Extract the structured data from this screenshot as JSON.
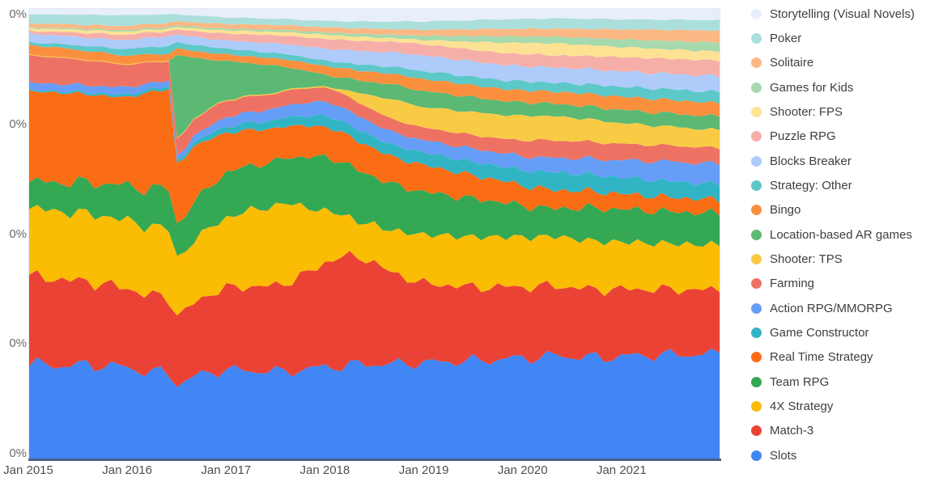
{
  "chart_data": {
    "type": "area",
    "subtype": "stacked-100-percent",
    "title": "",
    "xlabel": "",
    "ylabel": "",
    "y_axis_tick_labels": [
      "0%",
      "0%",
      "0%",
      "0%",
      "0%"
    ],
    "x_axis_tick_labels": [
      "Jan 2015",
      "Jan 2016",
      "Jan 2017",
      "Jan 2018",
      "Jan 2019",
      "Jan 2020",
      "Jan 2021"
    ],
    "x_tick_month_index": [
      0,
      12,
      24,
      36,
      48,
      60,
      72
    ],
    "months_total": 85,
    "x_start": "Jan 2015",
    "x_end": "Jan 2022",
    "grid": false,
    "legend_position": "right",
    "note_values": "percent share of total; series listed bottom-of-stack first; keyframes are month-index:share pairs, linearly interpolated, normalized to 100%",
    "series": [
      {
        "name": "Slots",
        "color": "#4285f4",
        "keyframes": {
          "0": 21,
          "9": 22.5,
          "12": 21.5,
          "17": 20.8,
          "18": 18,
          "21": 19.5,
          "24": 20,
          "36": 20.6,
          "42": 21.5,
          "48": 21.5,
          "60": 22.5,
          "64": 23,
          "70": 22.3,
          "76": 23,
          "84": 23.3
        }
      },
      {
        "name": "Match-3",
        "color": "#ea4335",
        "keyframes": {
          "0": 19.7,
          "6": 20,
          "12": 18.8,
          "17": 18.5,
          "18": 16.5,
          "24": 18.5,
          "30": 20,
          "36": 23.3,
          "38": 24.8,
          "41": 23.8,
          "45": 20,
          "48": 17.8,
          "54": 16.5,
          "64": 15.6,
          "72": 14.8,
          "84": 14.2
        }
      },
      {
        "name": "4X Strategy",
        "color": "#fbbc04",
        "keyframes": {
          "0": 15.2,
          "8": 16.3,
          "12": 16.2,
          "17": 17,
          "18": 14,
          "24": 15.8,
          "28": 18,
          "31": 18.8,
          "34": 15,
          "36": 11.5,
          "40": 7.8,
          "44": 9.5,
          "48": 11,
          "56": 11.3,
          "64": 11.1,
          "74": 10.3,
          "84": 10
        }
      },
      {
        "name": "Team RPG",
        "color": "#34a853",
        "keyframes": {
          "0": 5.9,
          "6": 7.2,
          "12": 8.3,
          "17": 9.8,
          "18": 8.2,
          "24": 10.2,
          "30": 10.3,
          "36": 12.2,
          "40": 11.5,
          "48": 9.6,
          "56": 8.2,
          "60": 7,
          "64": 6.2,
          "68": 7.3,
          "74": 7.2,
          "84": 7
        }
      },
      {
        "name": "Real Time Strategy",
        "color": "#fa6d15",
        "keyframes": {
          "0": 20.3,
          "6": 21,
          "12": 21,
          "14": 23,
          "17": 24.6,
          "18": 14.5,
          "20": 13,
          "24": 8.8,
          "30": 7.6,
          "36": 6.8,
          "48": 6,
          "56": 5,
          "64": 4.1,
          "72": 3.4,
          "84": 3
        }
      },
      {
        "name": "Game Constructor",
        "color": "#31b5c4",
        "keyframes": {
          "0": 0.25,
          "12": 0.6,
          "18": 0.8,
          "24": 1.4,
          "36": 2.5,
          "48": 2.8,
          "58": 3.2,
          "64": 4,
          "70": 3.6,
          "84": 3.5
        }
      },
      {
        "name": "Action RPG/MMORPG",
        "color": "#669df6",
        "keyframes": {
          "0": 1.6,
          "12": 1.8,
          "17": 1.3,
          "18": 1.1,
          "24": 2.2,
          "36": 3.2,
          "48": 2.8,
          "56": 3,
          "64": 3.2,
          "72": 3.8,
          "78": 4.4,
          "84": 4.5
        }
      },
      {
        "name": "Farming",
        "color": "#ee7263",
        "keyframes": {
          "0": 6.2,
          "9": 5.8,
          "12": 5.3,
          "17": 4.8,
          "18": 4,
          "24": 3.7,
          "36": 3.2,
          "48": 2.8,
          "58": 3.2,
          "62": 3.9,
          "64": 3.9,
          "72": 3.6,
          "84": 3.5
        }
      },
      {
        "name": "Shooter: TPS",
        "color": "#f9cb45",
        "keyframes": {
          "0": 0.15,
          "24": 0.2,
          "37": 0.3,
          "39": 1.5,
          "44": 4.5,
          "48": 4.6,
          "54": 5.2,
          "60": 5.5,
          "64": 5.4,
          "72": 4.6,
          "78": 4.2,
          "84": 4
        }
      },
      {
        "name": "Location-based AR games",
        "color": "#5bb974",
        "keyframes": {
          "0": 0,
          "17": 0,
          "18": 20.5,
          "20": 14,
          "24": 8.6,
          "30": 6.2,
          "34": 3.5,
          "36": 2.6,
          "40": 2.8,
          "44": 3.4,
          "48": 3.6,
          "56": 3.2,
          "64": 2.8,
          "72": 2.9,
          "84": 3
        }
      },
      {
        "name": "Bingo",
        "color": "#fa903e",
        "keyframes": {
          "0": 2.2,
          "12": 2,
          "18": 1.6,
          "24": 1.5,
          "30": 1.7,
          "36": 2,
          "44": 2.4,
          "48": 2.7,
          "64": 2.7,
          "76": 3,
          "84": 3
        }
      },
      {
        "name": "Strategy: Other",
        "color": "#5cc8c8",
        "keyframes": {
          "0": 0.6,
          "10": 1.4,
          "12": 1.6,
          "17": 1.9,
          "18": 1.5,
          "24": 1.3,
          "36": 1.2,
          "44": 1.6,
          "48": 1.8,
          "60": 2,
          "64": 2,
          "72": 2.2,
          "84": 2.5
        }
      },
      {
        "name": "Blocks Breaker",
        "color": "#aecbfa",
        "keyframes": {
          "0": 1.9,
          "12": 2.1,
          "17": 2.4,
          "18": 1.9,
          "24": 1.8,
          "36": 2.7,
          "44": 3.3,
          "48": 3.5,
          "64": 3.4,
          "72": 3.4,
          "84": 3.5
        }
      },
      {
        "name": "Puzzle RPG",
        "color": "#f6aea9",
        "keyframes": {
          "0": 0.6,
          "9": 1.2,
          "12": 1.3,
          "18": 1.2,
          "24": 1.6,
          "36": 2.2,
          "48": 2.5,
          "60": 2.7,
          "64": 2.7,
          "74": 3.2,
          "84": 3.5
        }
      },
      {
        "name": "Shooter: FPS",
        "color": "#fde293",
        "keyframes": {
          "0": 0.6,
          "12": 0.75,
          "18": 0.6,
          "24": 0.7,
          "36": 0.95,
          "46": 0.8,
          "50": 1.2,
          "58": 2.4,
          "64": 2.7,
          "70": 2.3,
          "78": 2.1,
          "84": 2
        }
      },
      {
        "name": "Games for Kids",
        "color": "#a6d9ad",
        "keyframes": {
          "0": 0.2,
          "12": 0.35,
          "24": 0.4,
          "36": 0.5,
          "44": 0.8,
          "48": 1,
          "56": 1.4,
          "64": 1.5,
          "72": 1.7,
          "84": 2
        }
      },
      {
        "name": "Solitaire",
        "color": "#fcb884",
        "keyframes": {
          "0": 0.9,
          "12": 1,
          "24": 1.05,
          "36": 1.2,
          "48": 1.3,
          "56": 1.6,
          "64": 1.8,
          "72": 2.2,
          "78": 2.5,
          "84": 2.7
        }
      },
      {
        "name": "Poker",
        "color": "#aadfdc",
        "keyframes": {
          "0": 2,
          "10": 2.6,
          "12": 2.5,
          "17": 2.1,
          "18": 1.7,
          "24": 1.5,
          "36": 1.4,
          "44": 1.7,
          "48": 1.9,
          "56": 2.1,
          "64": 2.3,
          "72": 2.2,
          "84": 2.3
        }
      },
      {
        "name": "Storytelling (Visual Novels)",
        "color": "#e8eefb",
        "keyframes": {
          "0": 1.2,
          "12": 1.5,
          "18": 1.3,
          "24": 1.9,
          "30": 2.3,
          "36": 2.7,
          "42": 2.9,
          "48": 2.8,
          "56": 2.4,
          "64": 2.1,
          "72": 2.3,
          "84": 2.5
        }
      }
    ]
  }
}
